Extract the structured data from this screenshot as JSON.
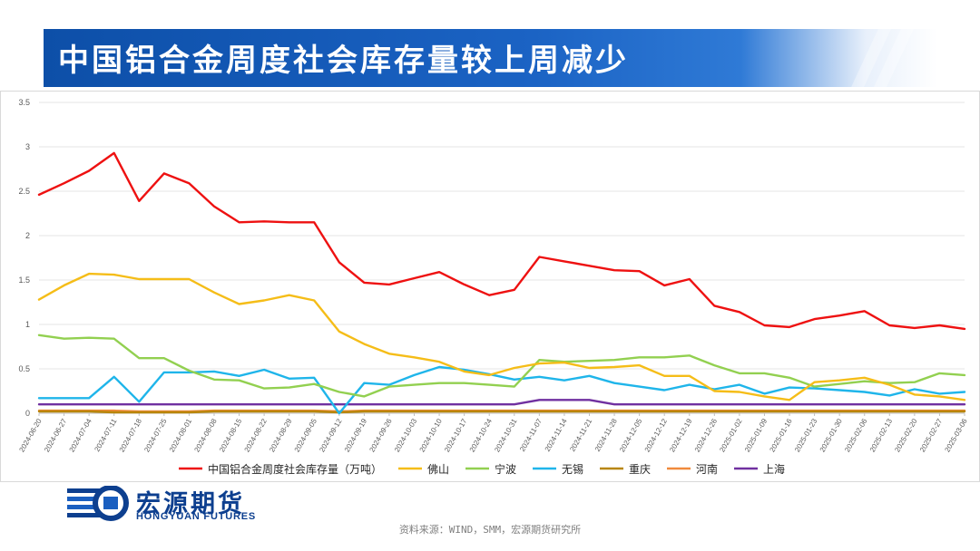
{
  "banner": {
    "title": "中国铝合金周度社会库存量较上周减少"
  },
  "logo": {
    "cn": "宏源期货",
    "en": "HONGYUAN FUTURES"
  },
  "footer": {
    "source": "资料来源：WIND，SMM，宏源期货研究所"
  },
  "chart_data": {
    "type": "line",
    "title": "",
    "xlabel": "",
    "ylabel": "",
    "ylim": [
      0,
      3.5
    ],
    "yticks": [
      "0",
      "0.5",
      "1",
      "1.5",
      "2",
      "2.5",
      "3",
      "3.5"
    ],
    "legend_position": "bottom",
    "categories": [
      "2024-06-20",
      "2024-06-27",
      "2024-07-04",
      "2024-07-11",
      "2024-07-18",
      "2024-07-25",
      "2024-08-01",
      "2024-08-08",
      "2024-08-15",
      "2024-08-22",
      "2024-08-29",
      "2024-09-05",
      "2024-09-12",
      "2024-09-19",
      "2024-09-26",
      "2024-10-03",
      "2024-10-10",
      "2024-10-17",
      "2024-10-24",
      "2024-10-31",
      "2024-11-07",
      "2024-11-14",
      "2024-11-21",
      "2024-11-28",
      "2024-12-05",
      "2024-12-12",
      "2024-12-19",
      "2024-12-26",
      "2025-01-02",
      "2025-01-09",
      "2025-01-16",
      "2025-01-23",
      "2025-01-30",
      "2025-02-06",
      "2025-02-13",
      "2025-02-20",
      "2025-02-27",
      "2025-03-06"
    ],
    "series": [
      {
        "name": "中国铝合金周度社会库存量（万吨）",
        "color": "#ee1111",
        "values": [
          2.46,
          2.59,
          2.73,
          2.93,
          2.39,
          2.7,
          2.59,
          2.33,
          2.15,
          2.16,
          2.15,
          2.15,
          1.7,
          1.47,
          1.45,
          1.52,
          1.59,
          1.45,
          1.33,
          1.39,
          1.76,
          1.71,
          1.66,
          1.61,
          1.6,
          1.44,
          1.51,
          1.21,
          1.14,
          0.99,
          0.97,
          1.06,
          1.1,
          1.15,
          0.99,
          0.96,
          0.99,
          0.95
        ]
      },
      {
        "name": "佛山",
        "color": "#f5bd18",
        "values": [
          1.28,
          1.44,
          1.57,
          1.56,
          1.51,
          1.51,
          1.51,
          1.36,
          1.23,
          1.27,
          1.33,
          1.27,
          0.92,
          0.78,
          0.67,
          0.63,
          0.58,
          0.47,
          0.43,
          0.51,
          0.56,
          0.57,
          0.51,
          0.52,
          0.54,
          0.42,
          0.42,
          0.25,
          0.24,
          0.19,
          0.15,
          0.35,
          0.37,
          0.4,
          0.32,
          0.21,
          0.19,
          0.15
        ]
      },
      {
        "name": "宁波",
        "color": "#92d050",
        "values": [
          0.88,
          0.84,
          0.85,
          0.84,
          0.62,
          0.62,
          0.48,
          0.38,
          0.37,
          0.28,
          0.29,
          0.33,
          0.24,
          0.19,
          0.3,
          0.32,
          0.34,
          0.34,
          0.32,
          0.3,
          0.6,
          0.58,
          0.59,
          0.6,
          0.63,
          0.63,
          0.65,
          0.54,
          0.45,
          0.45,
          0.4,
          0.3,
          0.33,
          0.36,
          0.34,
          0.35,
          0.45,
          0.43
        ]
      },
      {
        "name": "无锡",
        "color": "#1fb5ea",
        "values": [
          0.17,
          0.17,
          0.17,
          0.41,
          0.13,
          0.46,
          0.46,
          0.47,
          0.42,
          0.49,
          0.39,
          0.4,
          0.0,
          0.34,
          0.32,
          0.43,
          0.52,
          0.49,
          0.44,
          0.38,
          0.41,
          0.37,
          0.42,
          0.34,
          0.3,
          0.26,
          0.32,
          0.27,
          0.32,
          0.22,
          0.29,
          0.28,
          0.26,
          0.24,
          0.2,
          0.27,
          0.22,
          0.24
        ]
      },
      {
        "name": "重庆",
        "color": "#b8860b",
        "values": [
          0.02,
          0.02,
          0.02,
          0.01,
          0.01,
          0.01,
          0.01,
          0.02,
          0.02,
          0.02,
          0.02,
          0.02,
          0.01,
          0.02,
          0.02,
          0.02,
          0.02,
          0.02,
          0.02,
          0.02,
          0.02,
          0.02,
          0.02,
          0.02,
          0.02,
          0.02,
          0.02,
          0.02,
          0.02,
          0.02,
          0.02,
          0.02,
          0.02,
          0.02,
          0.02,
          0.02,
          0.02,
          0.02
        ]
      },
      {
        "name": "河南",
        "color": "#f08a3c",
        "values": [
          0.03,
          0.03,
          0.03,
          0.03,
          0.02,
          0.02,
          0.02,
          0.03,
          0.03,
          0.03,
          0.03,
          0.03,
          0.02,
          0.03,
          0.03,
          0.03,
          0.03,
          0.03,
          0.03,
          0.03,
          0.03,
          0.03,
          0.03,
          0.03,
          0.03,
          0.03,
          0.03,
          0.03,
          0.03,
          0.03,
          0.03,
          0.03,
          0.03,
          0.03,
          0.03,
          0.03,
          0.03,
          0.03
        ]
      },
      {
        "name": "上海",
        "color": "#7030a0",
        "values": [
          0.1,
          0.1,
          0.1,
          0.1,
          0.1,
          0.1,
          0.1,
          0.1,
          0.1,
          0.1,
          0.1,
          0.1,
          0.1,
          0.1,
          0.1,
          0.1,
          0.1,
          0.1,
          0.1,
          0.1,
          0.15,
          0.15,
          0.15,
          0.1,
          0.1,
          0.1,
          0.1,
          0.1,
          0.1,
          0.1,
          0.1,
          0.1,
          0.1,
          0.1,
          0.1,
          0.1,
          0.1,
          0.1
        ]
      }
    ]
  }
}
